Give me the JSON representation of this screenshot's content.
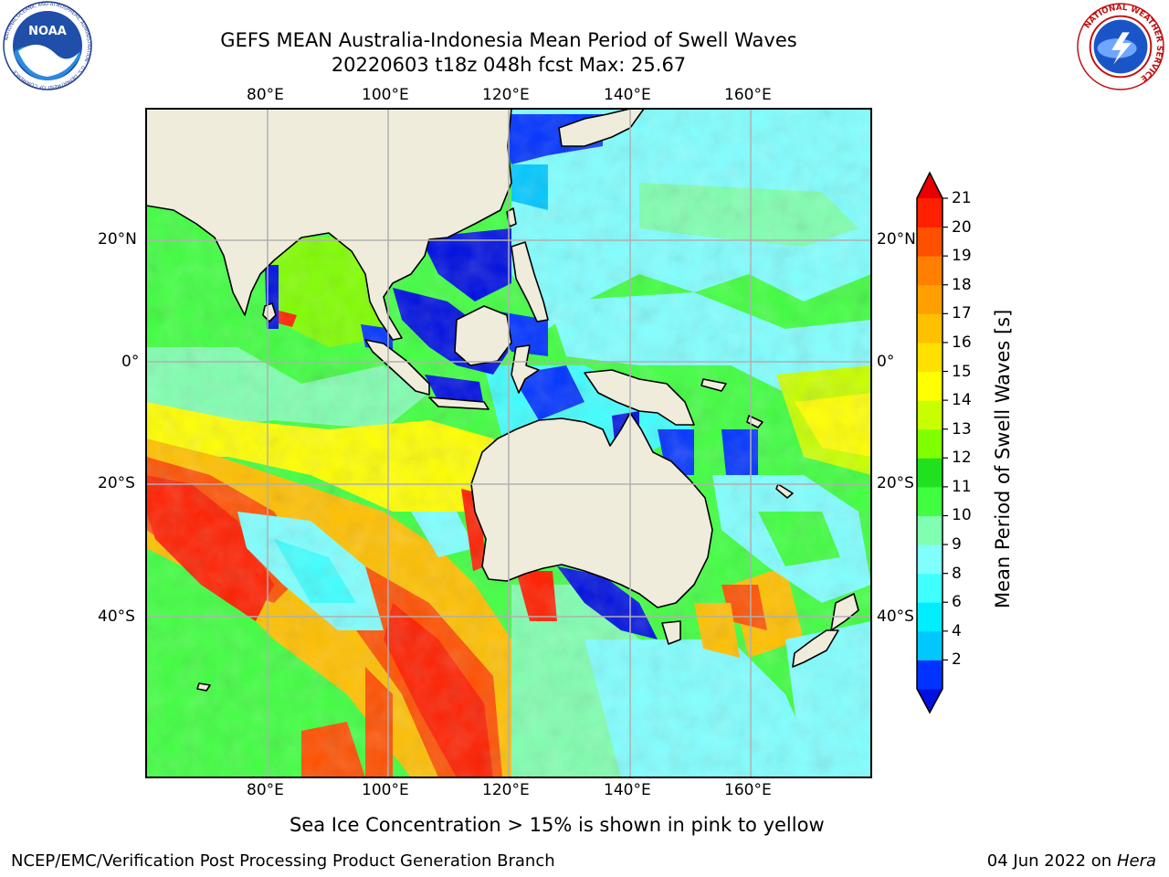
{
  "title_line1": "GEFS MEAN Australia-Indonesia Mean Period of Swell Waves",
  "title_line2": "20220603 t18z 048h fcst   Max: 25.67",
  "map": {
    "lon_ticks": [
      "80°E",
      "100°E",
      "120°E",
      "140°E",
      "160°E"
    ],
    "lat_ticks": [
      "20°N",
      "0°",
      "20°S",
      "40°S"
    ],
    "colors": {
      "land": "#efecdc",
      "grid": "#b0b0b0",
      "frame": "#000000"
    }
  },
  "colorbar": {
    "label": "Mean Period of Swell Waves [s]",
    "ticks": [
      "21",
      "20",
      "19",
      "18",
      "17",
      "16",
      "15",
      "14",
      "13",
      "12",
      "11",
      "10",
      "9",
      "8",
      "6",
      "4",
      "2"
    ],
    "levels": [
      2,
      4,
      6,
      8,
      9,
      10,
      11,
      12,
      13,
      14,
      15,
      16,
      17,
      18,
      19,
      20,
      21
    ],
    "colors": [
      "#0033ff",
      "#00c8ff",
      "#00ecff",
      "#40ffff",
      "#80ffff",
      "#80ffb0",
      "#40ff40",
      "#20e020",
      "#80ff00",
      "#c8ff00",
      "#ffff00",
      "#ffe000",
      "#ffc000",
      "#ffa000",
      "#ff8000",
      "#ff5000",
      "#ff2000"
    ],
    "under_color": "#0010e0",
    "over_color": "#e80000"
  },
  "caption": "Sea Ice Concentration > 15% is shown in pink to yellow",
  "footer_left": "NCEP/EMC/Verification Post Processing Product Generation Branch",
  "footer_date": "04 Jun 2022 on",
  "footer_machine": "Hera",
  "logos": {
    "noaa_text": "NOAA",
    "noaa_ring": "NATIONAL OCEANIC AND ATMOSPHERIC ADMINISTRATION · U.S. DEPARTMENT OF COMMERCE",
    "nws_ring": "NATIONAL WEATHER SERVICE"
  }
}
